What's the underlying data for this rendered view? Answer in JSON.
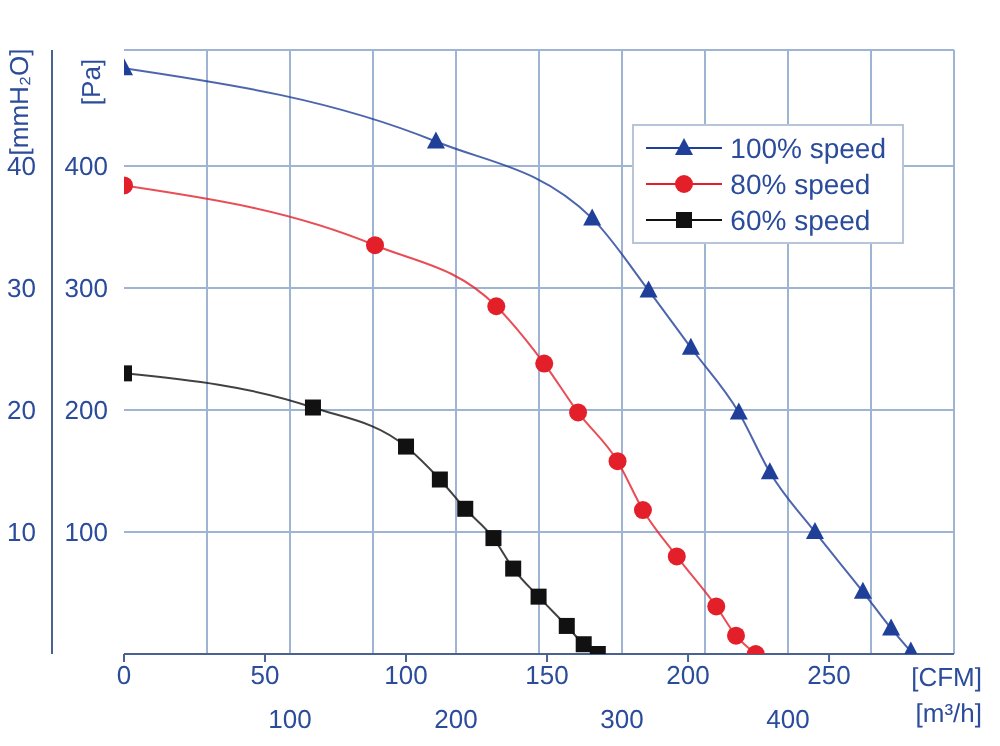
{
  "chart_data": {
    "type": "line",
    "xlabel": "[CFM]",
    "x2label": "[m³/h]",
    "ylabel": "[Pa]",
    "y2label": "[mmH₂O]",
    "xlim": [
      0,
      294.3
    ],
    "xticks": [
      0,
      50,
      100,
      150,
      200,
      250
    ],
    "x2lim": [
      0,
      500
    ],
    "x2ticks": [
      {
        "value": 50,
        "label": null
      },
      100,
      {
        "value": 150,
        "label": null
      },
      200,
      {
        "value": 250,
        "label": null
      },
      300,
      {
        "value": 350,
        "label": null
      },
      400,
      {
        "value": 450,
        "label": null
      }
    ],
    "ylim": [
      0,
      495
    ],
    "yticks": [
      100,
      200,
      300,
      400
    ],
    "y2lim": [
      0,
      49.5
    ],
    "y2ticks": [
      10,
      20,
      30,
      40
    ],
    "grid": true,
    "legend": "top right",
    "line_style": "solid",
    "series": [
      {
        "name": "100% speed",
        "color": "#1f3f99",
        "marker": "triangle",
        "x": [
          0,
          110.6,
          166,
          186,
          201,
          218,
          229,
          245,
          262,
          272,
          279
        ],
        "values": [
          480,
          420,
          357,
          298,
          251,
          198,
          149,
          100,
          51,
          21,
          2
        ]
      },
      {
        "name": "80% speed",
        "color": "#e3202a",
        "marker": "circle",
        "x": [
          0,
          89,
          132,
          149,
          161,
          175,
          184,
          196,
          210,
          217,
          224
        ],
        "values": [
          384,
          335,
          285,
          238,
          198,
          158,
          118,
          80,
          39,
          15,
          0
        ]
      },
      {
        "name": "60% speed",
        "color": "#111111",
        "marker": "square",
        "x": [
          0,
          67,
          100,
          112,
          121,
          131,
          138,
          147,
          157,
          163,
          168
        ],
        "values": [
          230,
          202,
          170,
          143,
          119,
          95,
          70,
          47,
          23,
          8,
          0
        ]
      }
    ]
  }
}
